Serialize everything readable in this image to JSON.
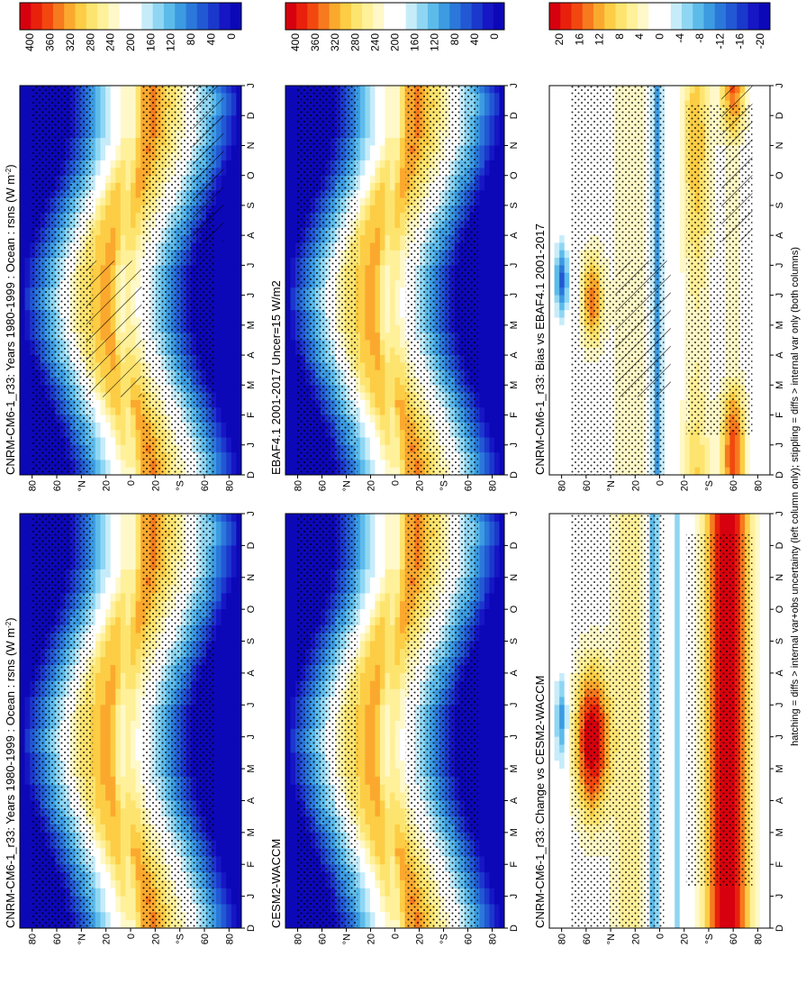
{
  "figure": {
    "footnote": "hatching = diffs > internal var+obs uncertainty (left column only); stippling = diffs > internal var only (both columns)"
  },
  "chart_data": [
    {
      "id": "left-top",
      "type": "heatmap",
      "title": "CNRM-CM6-1_r33: Years 1980-1999 : Ocean : rsns (W m",
      "title_sup": "-2",
      "title_end": ")",
      "time_ticks": [
        "D",
        "J",
        "F",
        "M",
        "A",
        "M",
        "J",
        "J",
        "A",
        "S",
        "O",
        "N",
        "D",
        "J"
      ],
      "lat_ticks": [
        "80",
        "60",
        "°N",
        "20",
        "0",
        "20",
        "°S",
        "60",
        "80"
      ],
      "colorbar_ticks": [
        "400",
        "360",
        "320",
        "280",
        "240",
        "200",
        "160",
        "120",
        "80",
        "40",
        "0"
      ],
      "kind": "absolute",
      "hatching": true
    },
    {
      "id": "right-top",
      "type": "heatmap",
      "title": "CNRM-CM6-1_r33: Years 1980-1999 : Ocean : rsns (W m",
      "title_sup": "-2",
      "title_end": ")",
      "time_ticks": [
        "D",
        "J",
        "F",
        "M",
        "A",
        "M",
        "J",
        "J",
        "A",
        "S",
        "O",
        "N",
        "D",
        "J"
      ],
      "lat_ticks": [
        "80",
        "60",
        "°N",
        "20",
        "0",
        "20",
        "°S",
        "60",
        "80"
      ],
      "colorbar_ticks": [
        "400",
        "360",
        "320",
        "280",
        "240",
        "200",
        "160",
        "120",
        "80",
        "40",
        "0"
      ],
      "kind": "absolute",
      "hatching": false
    },
    {
      "id": "left-mid",
      "type": "heatmap",
      "title": "EBAF4.1 2001-2017 Uncer=15 W/m2",
      "title_sup": "",
      "title_end": "",
      "time_ticks": [
        "D",
        "J",
        "F",
        "M",
        "A",
        "M",
        "J",
        "J",
        "A",
        "S",
        "O",
        "N",
        "D",
        "J"
      ],
      "lat_ticks": [
        "80",
        "60",
        "°N",
        "20",
        "0",
        "20",
        "°S",
        "60",
        "80"
      ],
      "colorbar_ticks": [
        "400",
        "360",
        "320",
        "280",
        "240",
        "200",
        "160",
        "120",
        "80",
        "40",
        "0"
      ],
      "kind": "absolute",
      "hatching": false
    },
    {
      "id": "right-mid",
      "type": "heatmap",
      "title": "CESM2-WACCM",
      "title_sup": "",
      "title_end": "",
      "time_ticks": [
        "D",
        "J",
        "F",
        "M",
        "A",
        "M",
        "J",
        "J",
        "A",
        "S",
        "O",
        "N",
        "D",
        "J"
      ],
      "lat_ticks": [
        "80",
        "60",
        "°N",
        "20",
        "0",
        "20",
        "°S",
        "60",
        "80"
      ],
      "colorbar_ticks": [
        "400",
        "360",
        "320",
        "280",
        "240",
        "200",
        "160",
        "120",
        "80",
        "40",
        "0"
      ],
      "kind": "absolute",
      "hatching": false
    },
    {
      "id": "left-bot",
      "type": "heatmap",
      "title": "CNRM-CM6-1_r33: Bias vs EBAF4.1 2001-2017",
      "title_sup": "",
      "title_end": "",
      "time_ticks": [
        "D",
        "J",
        "F",
        "M",
        "A",
        "M",
        "J",
        "J",
        "A",
        "S",
        "O",
        "N",
        "D",
        "J"
      ],
      "lat_ticks": [
        "80",
        "60",
        "°N",
        "20",
        "0",
        "20",
        "°S",
        "60",
        "80"
      ],
      "colorbar_ticks": [
        "20",
        "16",
        "12",
        "8",
        "4",
        "0",
        "-4",
        "-8",
        "-12",
        "-16",
        "-20"
      ],
      "kind": "bias",
      "hatching": true
    },
    {
      "id": "right-bot",
      "type": "heatmap",
      "title": "CNRM-CM6-1_r33: Change vs CESM2-WACCM",
      "title_sup": "",
      "title_end": "",
      "time_ticks": [
        "D",
        "J",
        "F",
        "M",
        "A",
        "M",
        "J",
        "J",
        "A",
        "S",
        "O",
        "N",
        "D",
        "J"
      ],
      "lat_ticks": [
        "80",
        "60",
        "°N",
        "20",
        "0",
        "20",
        "°S",
        "60",
        "80"
      ],
      "colorbar_ticks": [
        "20",
        "16",
        "12",
        "8",
        "4",
        "0",
        "-4",
        "-8",
        "-12",
        "-16",
        "-20"
      ],
      "kind": "change",
      "hatching": false
    }
  ],
  "colors": {
    "ramp": [
      "#d7000e",
      "#e8200c",
      "#f2480f",
      "#f77a1e",
      "#fba92e",
      "#fccd45",
      "#fde46f",
      "#fff09a",
      "#fff8c8",
      "#ffffff",
      "#ffffff",
      "#c6ecfa",
      "#8fd6f3",
      "#5dbbea",
      "#3c9be1",
      "#2b78da",
      "#2258d3",
      "#1b38cc",
      "#1616c4",
      "#0c08b8"
    ]
  }
}
